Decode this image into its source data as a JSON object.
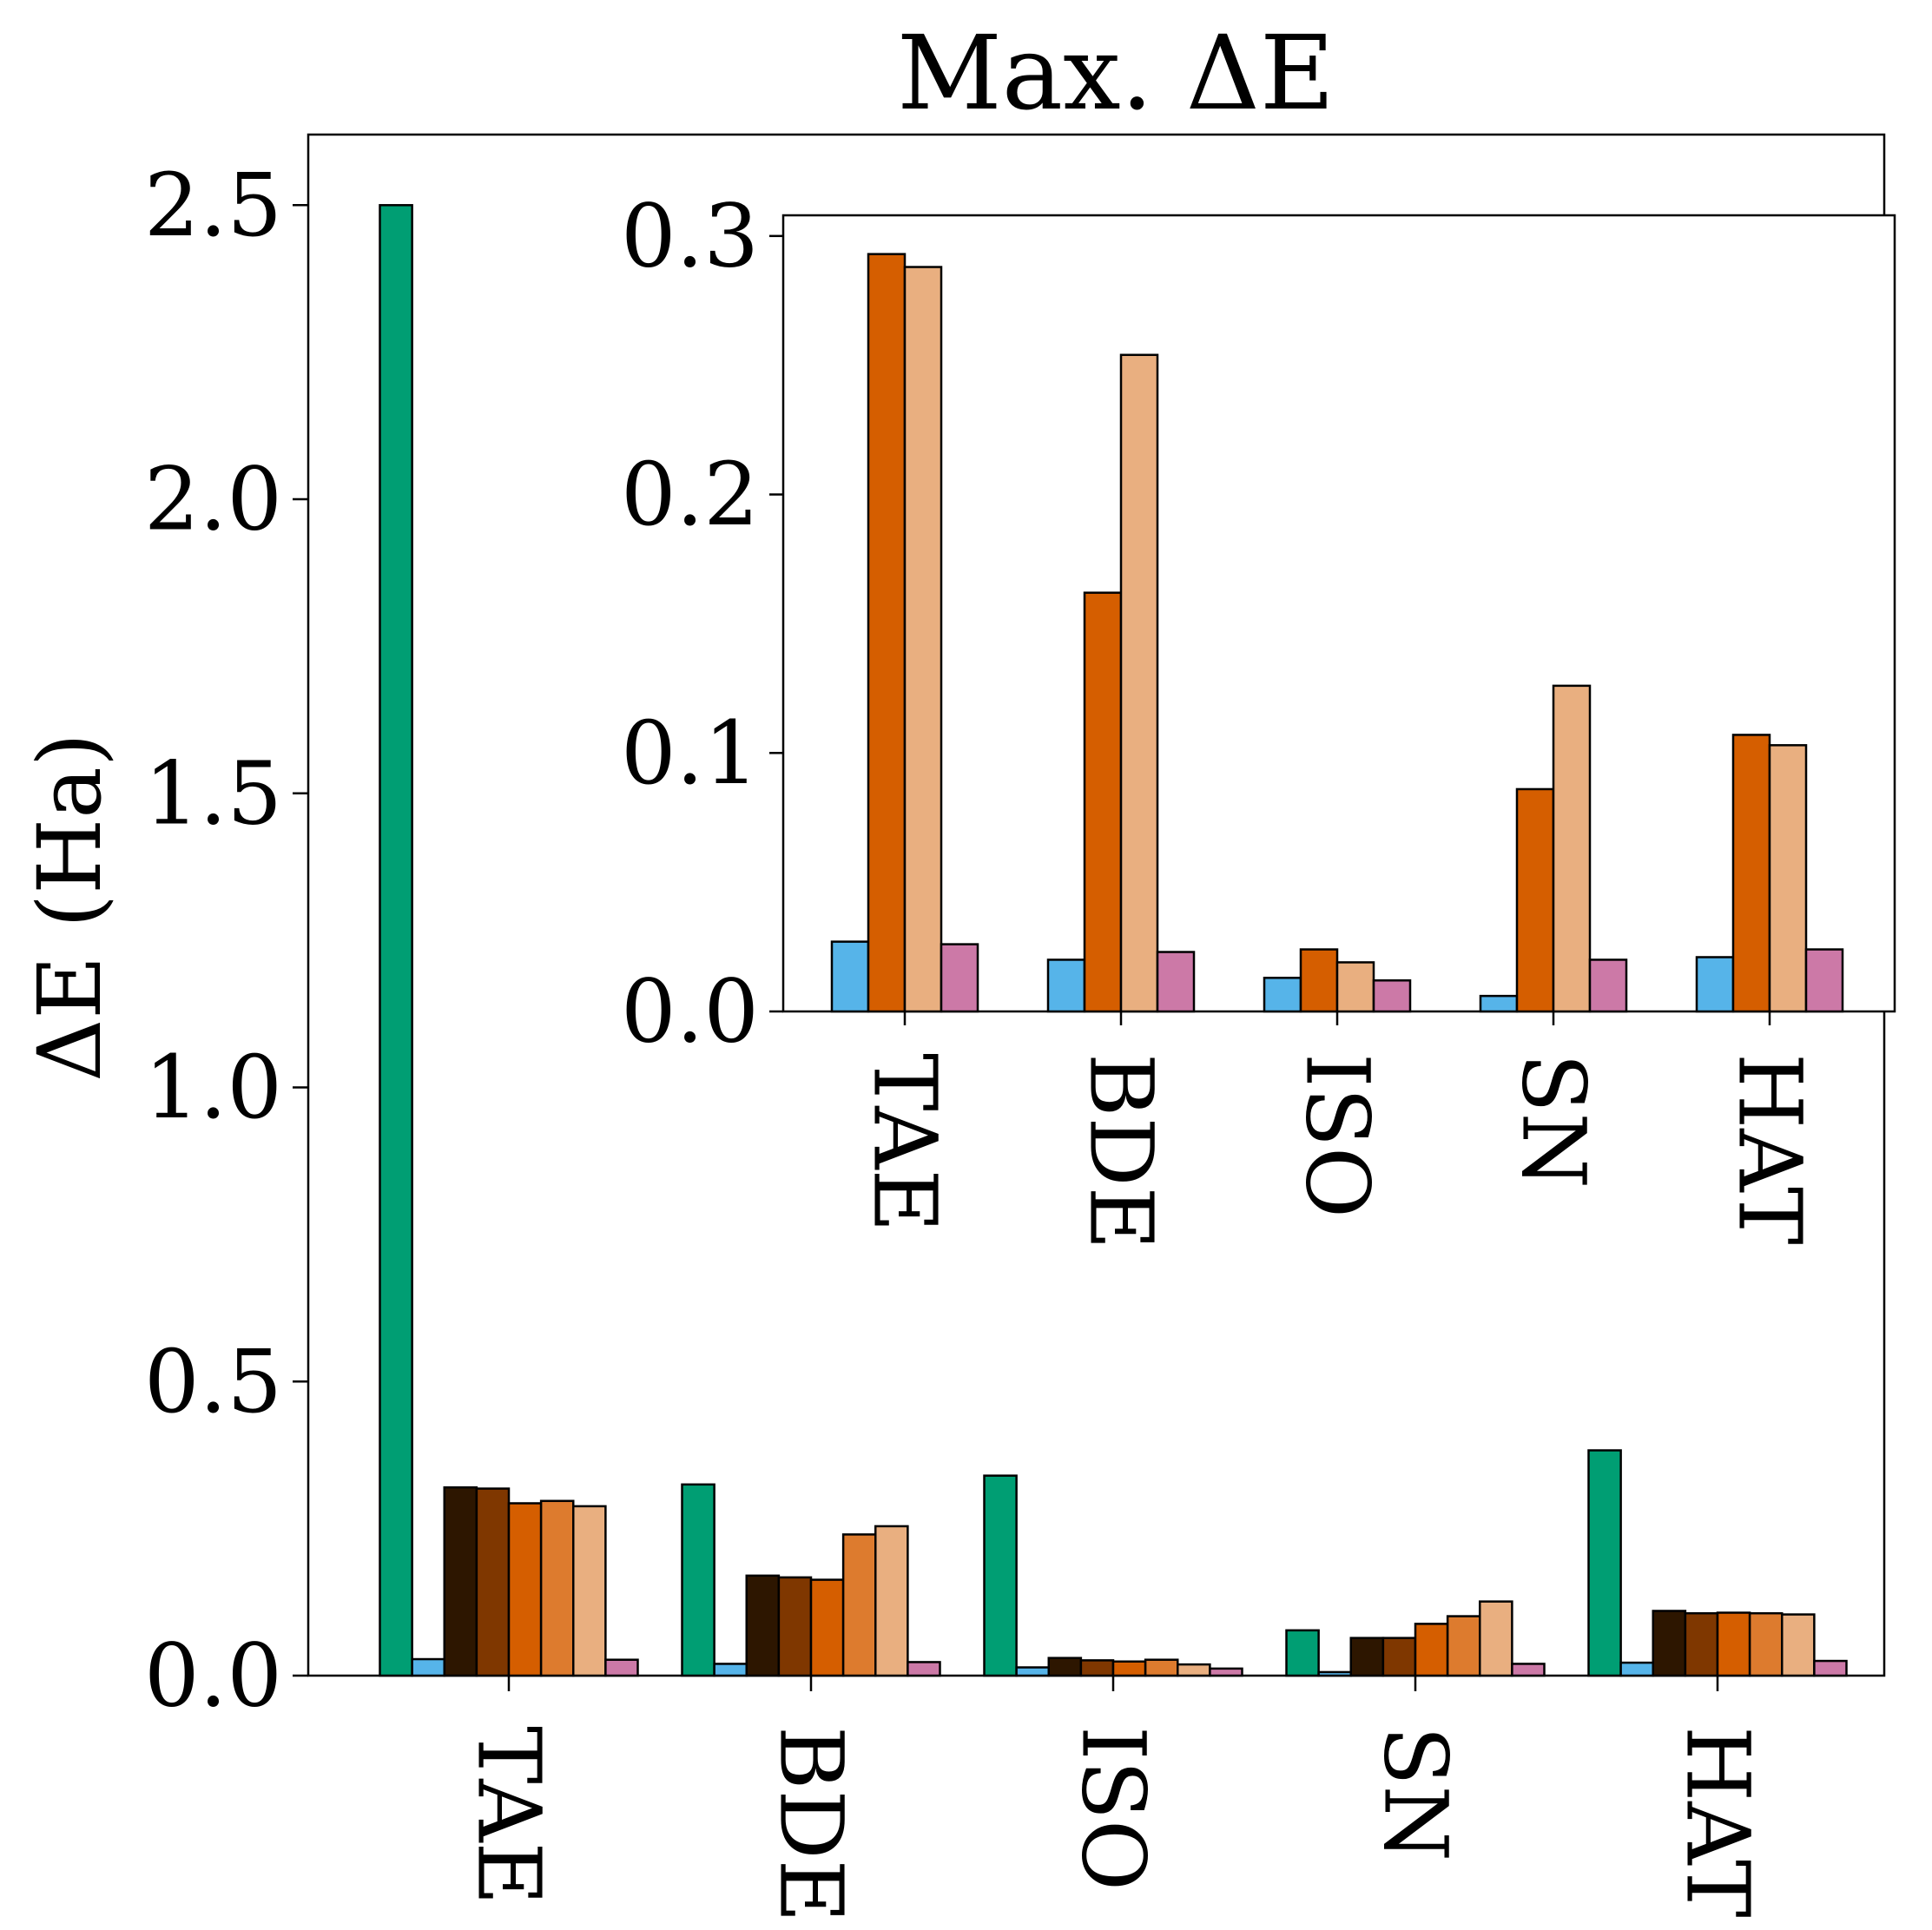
{
  "chart_data": [
    {
      "type": "bar",
      "title": "Max. ΔE",
      "ylabel": "ΔE (Ha)",
      "ylim": [
        0,
        2.62
      ],
      "yticks": [
        "0.0",
        "0.5",
        "1.0",
        "1.5",
        "2.0",
        "2.5"
      ],
      "categories": [
        "TAE",
        "BDE",
        "ISO",
        "SN",
        "HAT"
      ],
      "series": [
        {
          "color": "#009E73",
          "values": [
            2.5,
            0.325,
            0.34,
            0.077,
            0.383
          ]
        },
        {
          "color": "#56B4E9",
          "values": [
            0.028,
            0.02,
            0.014,
            0.006,
            0.022
          ]
        },
        {
          "color": "#2D1600",
          "values": [
            0.32,
            0.17,
            0.03,
            0.064,
            0.11
          ]
        },
        {
          "color": "#7F3700",
          "values": [
            0.318,
            0.167,
            0.026,
            0.064,
            0.106
          ]
        },
        {
          "color": "#D55E00",
          "values": [
            0.293,
            0.163,
            0.024,
            0.088,
            0.107
          ]
        },
        {
          "color": "#DD7B2E",
          "values": [
            0.297,
            0.24,
            0.027,
            0.101,
            0.106
          ]
        },
        {
          "color": "#E9AF80",
          "values": [
            0.288,
            0.254,
            0.019,
            0.126,
            0.104
          ]
        },
        {
          "color": "#CC79A7",
          "values": [
            0.027,
            0.023,
            0.012,
            0.02,
            0.025
          ]
        }
      ]
    },
    {
      "type": "bar",
      "ylim": [
        0,
        0.308
      ],
      "yticks": [
        "0.0",
        "0.1",
        "0.2",
        "0.3"
      ],
      "categories": [
        "TAE",
        "BDE",
        "ISO",
        "SN",
        "HAT"
      ],
      "series": [
        {
          "color": "#56B4E9",
          "values": [
            0.027,
            0.02,
            0.013,
            0.006,
            0.021
          ]
        },
        {
          "color": "#D55E00",
          "values": [
            0.293,
            0.162,
            0.024,
            0.086,
            0.107
          ]
        },
        {
          "color": "#E9AF80",
          "values": [
            0.288,
            0.254,
            0.019,
            0.126,
            0.103
          ]
        },
        {
          "color": "#CC79A7",
          "values": [
            0.026,
            0.023,
            0.012,
            0.02,
            0.024
          ]
        }
      ]
    }
  ]
}
